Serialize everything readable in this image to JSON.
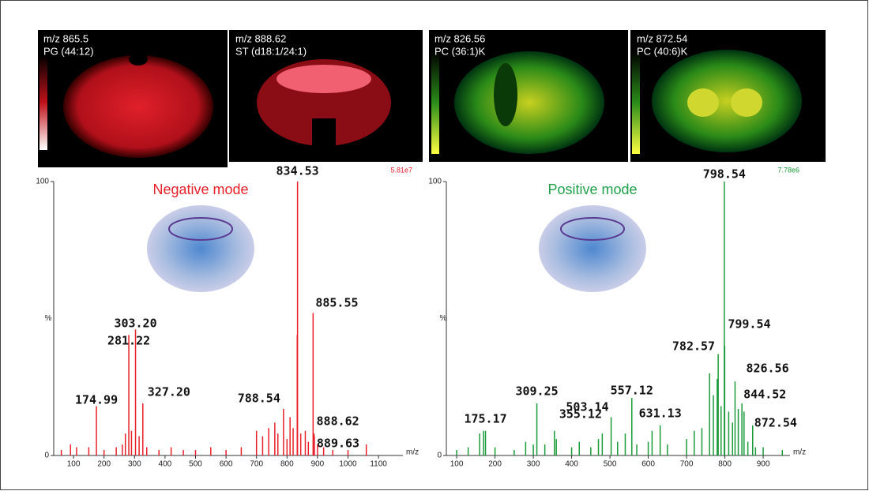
{
  "images": [
    {
      "line1": "m/z 865.5",
      "line2": "PG (44:12)"
    },
    {
      "line1": "m/z 888.62",
      "line2": "ST (d18:1/24:1)"
    },
    {
      "line1": "m/z 826.56",
      "line2": "PC (36:1)K"
    },
    {
      "line1": "m/z 872.54",
      "line2": "PC (40:6)K"
    }
  ],
  "chart_data": [
    {
      "type": "stem",
      "title": "Negative mode",
      "scale_label": "5.81e7",
      "color": "#e8202a",
      "title_color": "#e8202a",
      "xlabel": "m/z",
      "ylabel": "%",
      "xlim": [
        35,
        1180
      ],
      "xticks": [
        100,
        200,
        300,
        400,
        500,
        600,
        700,
        800,
        900,
        1000,
        1100
      ],
      "ylim": [
        0,
        100
      ],
      "yticks": [
        0,
        100
      ],
      "x": [
        174.99,
        281.22,
        303.2,
        327.2,
        788.54,
        834.53,
        885.55,
        888.62,
        889.63,
        60,
        90,
        110,
        150,
        200,
        240,
        260,
        270,
        290,
        315,
        340,
        380,
        420,
        460,
        500,
        550,
        600,
        650,
        700,
        720,
        740,
        760,
        770,
        800,
        810,
        820,
        833.5,
        845,
        860,
        870,
        900,
        920,
        950,
        1000,
        1060
      ],
      "values": [
        18,
        44,
        46,
        19,
        17,
        100,
        52,
        8,
        7,
        2,
        4,
        3,
        3,
        2,
        3,
        4,
        8,
        9,
        7,
        3,
        2,
        3,
        2,
        2,
        3,
        2,
        3,
        9,
        7,
        10,
        12,
        8,
        6,
        14,
        10,
        44,
        8,
        9,
        5,
        4,
        3,
        2,
        2,
        4
      ],
      "peak_labels": [
        "174.99",
        "281.22",
        "303.20",
        "327.20",
        "788.54",
        "834.53",
        "885.55",
        "888.62",
        "889.63",
        null,
        null,
        null,
        null,
        null,
        null,
        null,
        null,
        null,
        null,
        null,
        null,
        null,
        null,
        null,
        null,
        null,
        null,
        null,
        null,
        null,
        null,
        null,
        null,
        null,
        null,
        null,
        null,
        null,
        null,
        null,
        null,
        null,
        null,
        null
      ]
    },
    {
      "type": "stem",
      "title": "Positive mode",
      "scale_label": "7.78e6",
      "color": "#1a9a3a",
      "title_color": "#22a04a",
      "xlabel": "m/z",
      "ylabel": "%",
      "xlim": [
        73,
        970
      ],
      "xticks": [
        100,
        200,
        300,
        400,
        500,
        600,
        700,
        800,
        900
      ],
      "ylim": [
        0,
        100
      ],
      "yticks": [
        0,
        100
      ],
      "x": [
        175.17,
        309.25,
        355.12,
        503.14,
        557.12,
        631.13,
        782.57,
        798.54,
        799.54,
        826.56,
        844.52,
        872.54,
        100,
        130,
        160,
        170,
        200,
        250,
        280,
        300,
        330,
        360,
        400,
        420,
        450,
        470,
        480,
        520,
        540,
        570,
        600,
        610,
        650,
        700,
        720,
        740,
        760,
        770,
        780,
        790,
        810,
        820,
        835,
        850,
        860,
        880,
        900,
        950
      ],
      "values": [
        9,
        19,
        9,
        14,
        21,
        11,
        37,
        100,
        40,
        27,
        19,
        11,
        2,
        3,
        8,
        9,
        3,
        2,
        5,
        4,
        4,
        6,
        3,
        5,
        3,
        6,
        8,
        5,
        8,
        4,
        5,
        9,
        4,
        6,
        9,
        10,
        30,
        22,
        28,
        18,
        16,
        12,
        17,
        16,
        5,
        3,
        3,
        2
      ],
      "peak_labels": [
        "175.17",
        "309.25",
        "355.12",
        "503.14",
        "557.12",
        "631.13",
        "782.57",
        "798.54",
        "799.54",
        "826.56",
        "844.52",
        "872.54",
        null,
        null,
        null,
        null,
        null,
        null,
        null,
        null,
        null,
        null,
        null,
        null,
        null,
        null,
        null,
        null,
        null,
        null,
        null,
        null,
        null,
        null,
        null,
        null,
        null,
        null,
        null,
        null,
        null,
        null,
        null,
        null,
        null,
        null,
        null,
        null
      ]
    }
  ]
}
